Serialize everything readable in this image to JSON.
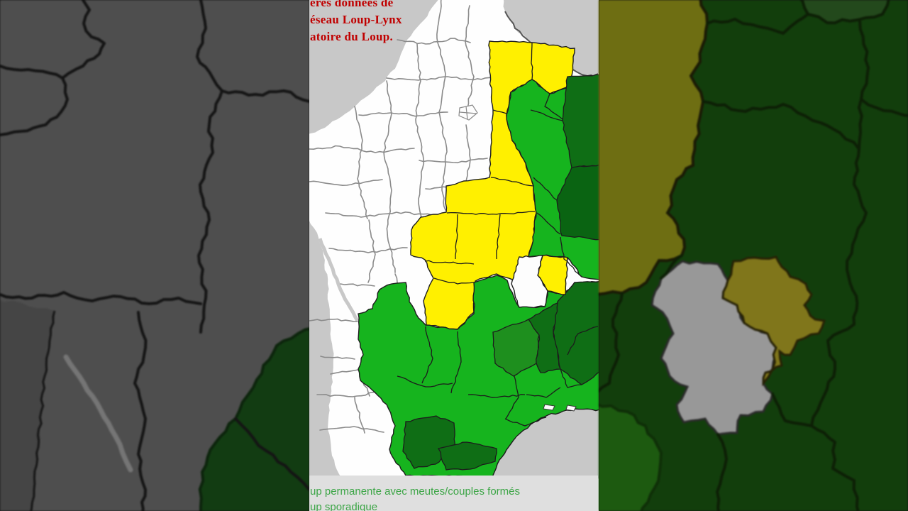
{
  "title": {
    "lines": [
      "ères données de",
      "éseau Loup-Lynx",
      "atoire du Loup."
    ]
  },
  "legend": {
    "items": [
      "up permanente avec meutes/couples formés",
      "up sporadique"
    ]
  },
  "colors": {
    "sea": "#C8C8C8",
    "dept_border": "#8a8a8a",
    "yellow": "#FFF000",
    "green_bright": "#16B41E",
    "green_mid": "#1E8F1E",
    "green_dark": "#0F6E15",
    "green_darker": "#0A6412",
    "title_red": "#C00000",
    "legend_text": "#3CA546",
    "legend_bg": "#DFDFDF",
    "left_land": "#4E4E4E",
    "left_sea": "#454545",
    "left_border": "#141414",
    "left_green": "#123C12",
    "left_channel": "#757575",
    "right_base": "#123E0C",
    "right_olive": "#6E6E12",
    "right_olive2": "#80761B",
    "right_gray": "#989898",
    "right_green_corner": "#23491C",
    "right_green_bl": "#1D5A10",
    "right_border": "#0D1F06"
  }
}
